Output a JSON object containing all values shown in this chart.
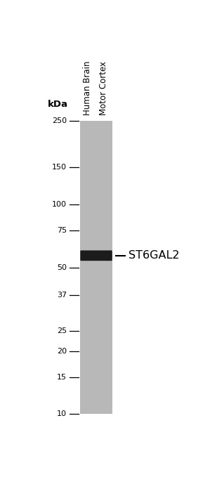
{
  "lane_label_1": "Human Brain",
  "lane_label_2": "Motor Cortex",
  "band_label": "ST6GAL2",
  "kda_label": "kDa",
  "markers": [
    250,
    150,
    100,
    75,
    50,
    37,
    25,
    20,
    15,
    10
  ],
  "band_kda": 57,
  "lane_color": "#b8b8b8",
  "band_color": "#1c1c1c",
  "background_color": "#ffffff",
  "label_fontsize": 8.5,
  "marker_fontsize": 8.0,
  "band_label_fontsize": 11.5,
  "kda_fontsize": 9.5
}
